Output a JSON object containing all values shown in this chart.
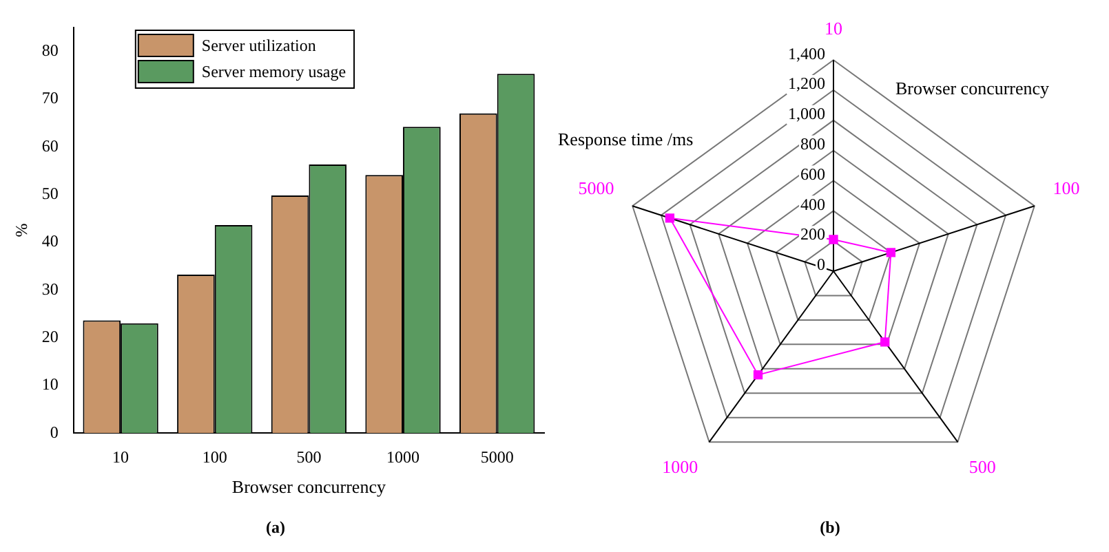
{
  "chart_data": [
    {
      "type": "bar",
      "title": "(a)",
      "xlabel": "Browser concurrency",
      "ylabel": "%",
      "categories": [
        "10",
        "100",
        "500",
        "1000",
        "5000"
      ],
      "series": [
        {
          "name": "Server utilization",
          "color": "#c8956a",
          "values": [
            23.6,
            33.2,
            49.8,
            54.1,
            67
          ]
        },
        {
          "name": "Server memory usage",
          "color": "#5a9a60",
          "values": [
            23,
            43.6,
            56.3,
            64.2,
            75.3
          ]
        }
      ],
      "ylim": [
        0,
        85
      ],
      "yticks": [
        0,
        10,
        20,
        30,
        40,
        50,
        60,
        70,
        80
      ],
      "grid": false,
      "legend": "top left"
    },
    {
      "type": "radar",
      "title": "(b)",
      "xlabel": "Browser concurrency",
      "ylabel": "Response time /ms",
      "categories": [
        "10",
        "100",
        "500",
        "1000",
        "5000"
      ],
      "series": [
        {
          "color": "#ff00ff",
          "values": [
            210,
            400,
            580,
            850,
            1140
          ]
        }
      ],
      "ylim": [
        0,
        1400
      ],
      "yticks": [
        0,
        200,
        400,
        600,
        800,
        {
          "value": 1000,
          "label": "1,000"
        },
        {
          "value": 1200,
          "label": "1,200"
        },
        {
          "value": 1400,
          "label": "1,400"
        }
      ],
      "grid": true,
      "marker": "square",
      "legend": false
    }
  ]
}
